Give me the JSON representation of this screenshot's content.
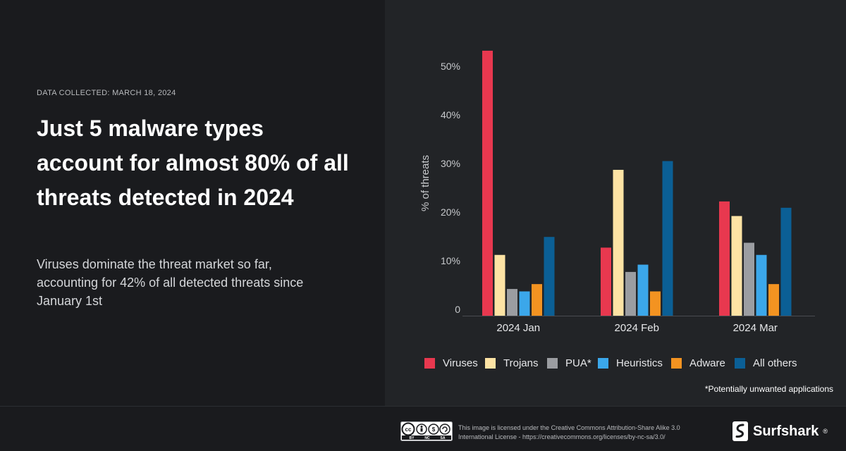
{
  "header": {
    "date_collected": "DATA COLLECTED: MARCH 18, 2024",
    "headline": "Just 5 malware types account for almost 80% of all threats detected in 2024",
    "subtext": "Viruses dominate the threat market so far, accounting for 42% of all detected threats since January 1st"
  },
  "chart_data": {
    "type": "bar",
    "categories": [
      "2024 Jan",
      "2024 Feb",
      "2024 Mar"
    ],
    "series": [
      {
        "name": "Viruses",
        "color": "#e8384f",
        "values": [
          54.5,
          14,
          23.5
        ]
      },
      {
        "name": "Trojans",
        "color": "#fde3a4",
        "values": [
          12.5,
          30,
          20.5
        ]
      },
      {
        "name": "PUA*",
        "color": "#9b9da1",
        "values": [
          5.5,
          9,
          15
        ]
      },
      {
        "name": "Heuristics",
        "color": "#3ba7ea",
        "values": [
          5,
          10.5,
          12.5
        ]
      },
      {
        "name": "Adware",
        "color": "#f39321",
        "values": [
          6.5,
          5,
          6.5
        ]
      },
      {
        "name": "All others",
        "color": "#0b5f95",
        "values": [
          16.2,
          31.8,
          22.2
        ]
      }
    ],
    "ylabel": "% of threats",
    "ylim": [
      0,
      55
    ],
    "yticks": [
      0,
      10,
      20,
      30,
      40,
      50
    ],
    "ytick_labels": [
      "0",
      "10%",
      "20%",
      "30%",
      "40%",
      "50%"
    ],
    "grid": false,
    "legend_position": "bottom"
  },
  "footnote": "*Potentially unwanted applications",
  "license_text": "This image is licensed under the Creative Commons Attribution-Share Alike 3.0 International License - https://creativecommons.org/licenses/by-nc-sa/3.0/",
  "cc_badge": {
    "labels": [
      "BY",
      "NC",
      "SA"
    ]
  },
  "brand": {
    "name": "Surfshark",
    "reg": "®",
    "icon": "surfshark-logo-icon"
  }
}
